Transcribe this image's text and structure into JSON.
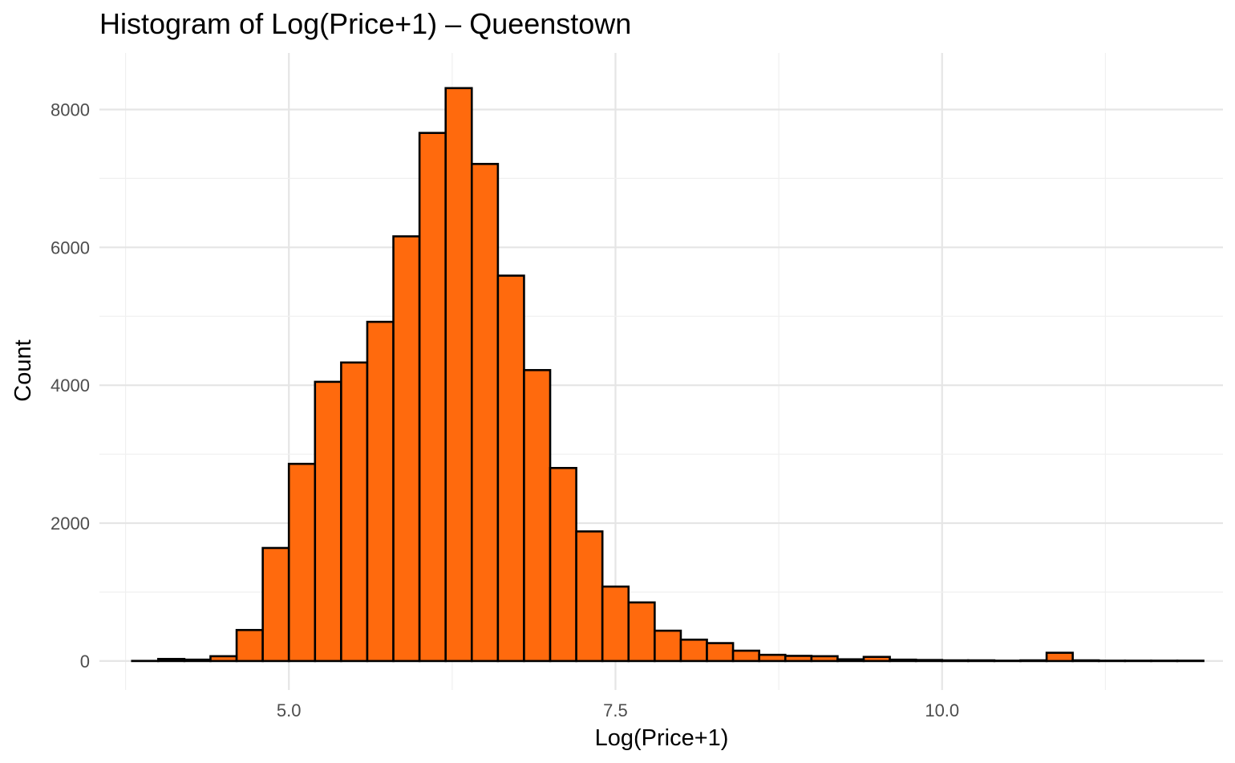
{
  "chart_data": {
    "type": "bar",
    "title": "Histogram of Log(Price+1) – Queenstown",
    "xlabel": "Log(Price+1)",
    "ylabel": "Count",
    "bin_width": 0.2,
    "bins_x_start": 3.9,
    "xlim": [
      3.55,
      12.15
    ],
    "ylim": [
      -420,
      8820
    ],
    "x_ticks": [
      5.0,
      7.5,
      10.0
    ],
    "x_tick_labels": [
      "5.0",
      "7.5",
      "10.0"
    ],
    "y_ticks": [
      0,
      2000,
      4000,
      6000,
      8000
    ],
    "y_tick_labels": [
      "0",
      "2000",
      "4000",
      "6000",
      "8000"
    ],
    "values": [
      2,
      30,
      20,
      70,
      450,
      1640,
      2860,
      4050,
      4330,
      4920,
      6160,
      7660,
      8310,
      7210,
      5590,
      4220,
      2800,
      1880,
      1080,
      850,
      440,
      310,
      260,
      150,
      90,
      75,
      70,
      25,
      60,
      20,
      15,
      10,
      10,
      5,
      10,
      120,
      10,
      5,
      5,
      5,
      5
    ],
    "grid": true,
    "colors": {
      "fill": "#ff6a0d",
      "stroke": "#000000",
      "background": "#ffffff"
    }
  }
}
